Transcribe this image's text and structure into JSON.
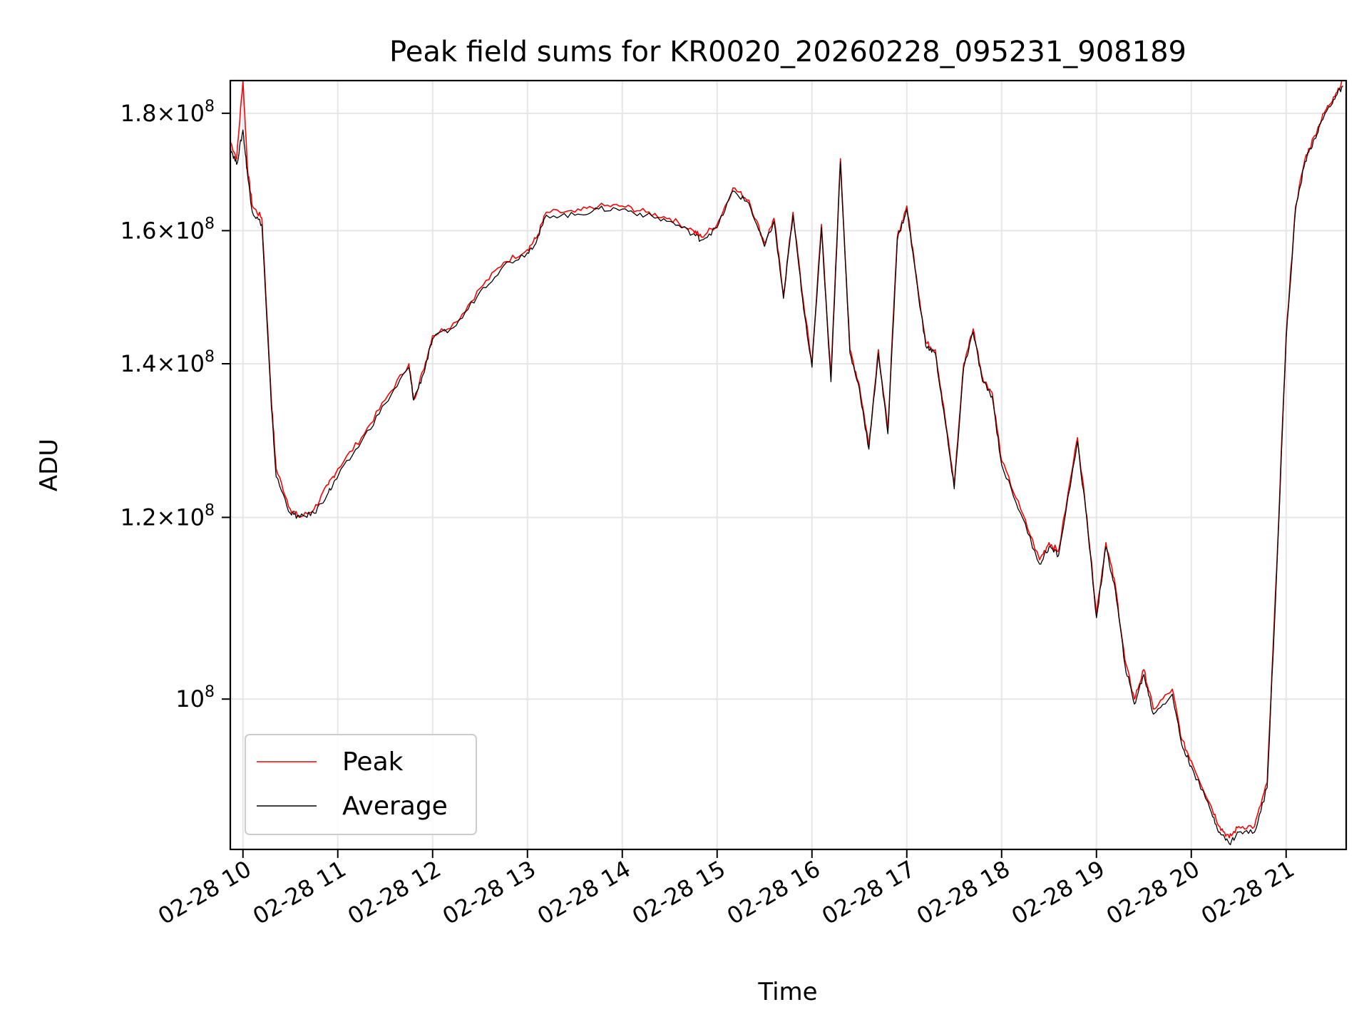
{
  "chart_data": {
    "type": "line",
    "title": "Peak field sums for KR0020_20260228_095231_908189",
    "xlabel": "Time",
    "ylabel": "ADU",
    "yscale": "log",
    "grid": true,
    "legend_position": "lower-left",
    "x_ticks": [
      "02-28 10",
      "02-28 11",
      "02-28 12",
      "02-28 13",
      "02-28 14",
      "02-28 15",
      "02-28 16",
      "02-28 17",
      "02-28 18",
      "02-28 19",
      "02-28 20",
      "02-28 21"
    ],
    "y_ticks": [
      {
        "value": 100000000,
        "mantissa": "",
        "exponent": "8"
      },
      {
        "value": 120000000,
        "mantissa": "1.2",
        "exponent": "8"
      },
      {
        "value": 140000000,
        "mantissa": "1.4",
        "exponent": "8"
      },
      {
        "value": 160000000,
        "mantissa": "1.6",
        "exponent": "8"
      },
      {
        "value": 180000000,
        "mantissa": "1.8",
        "exponent": "8"
      }
    ],
    "xlim": [
      "02-28 09:52",
      "02-28 21:38"
    ],
    "ylim": [
      86000000,
      186000000
    ],
    "series": [
      {
        "name": "Peak",
        "color": "#ff0000",
        "x": [
          "09:52",
          "09:56",
          "10:00",
          "10:03",
          "10:06",
          "10:12",
          "10:18",
          "10:21",
          "10:30",
          "10:36",
          "10:45",
          "10:54",
          "11:00",
          "11:15",
          "11:30",
          "11:45",
          "11:48",
          "11:54",
          "12:00",
          "12:15",
          "12:30",
          "12:45",
          "13:00",
          "13:06",
          "13:12",
          "13:30",
          "13:45",
          "14:00",
          "14:15",
          "14:30",
          "14:45",
          "14:50",
          "15:00",
          "15:10",
          "15:20",
          "15:30",
          "15:36",
          "15:42",
          "15:48",
          "15:54",
          "16:00",
          "16:06",
          "16:12",
          "16:18",
          "16:24",
          "16:30",
          "16:36",
          "16:42",
          "16:48",
          "16:54",
          "17:00",
          "17:06",
          "17:12",
          "17:18",
          "17:24",
          "17:30",
          "17:36",
          "17:42",
          "17:48",
          "17:54",
          "18:00",
          "18:12",
          "18:24",
          "18:30",
          "18:36",
          "18:48",
          "18:54",
          "19:00",
          "19:06",
          "19:12",
          "19:18",
          "19:24",
          "19:30",
          "19:36",
          "19:48",
          "19:54",
          "20:00",
          "20:12",
          "20:18",
          "20:24",
          "20:30",
          "20:40",
          "20:48",
          "20:54",
          "21:00",
          "21:06",
          "21:12",
          "21:18",
          "21:24",
          "21:30",
          "21:36"
        ],
        "values": [
          175000000,
          172000000,
          186000000,
          170000000,
          164000000,
          162000000,
          135000000,
          126000000,
          121000000,
          120000000,
          121000000,
          124000000,
          126000000,
          130000000,
          135000000,
          140000000,
          135000000,
          139000000,
          144000000,
          146000000,
          151000000,
          155000000,
          157000000,
          159000000,
          163000000,
          163000000,
          164000000,
          164000000,
          163000000,
          162000000,
          160000000,
          159000000,
          161000000,
          167000000,
          165000000,
          158000000,
          162000000,
          150000000,
          163000000,
          150000000,
          140000000,
          161000000,
          138000000,
          172000000,
          142000000,
          137000000,
          129000000,
          142000000,
          131000000,
          159000000,
          164000000,
          153000000,
          143000000,
          142000000,
          133000000,
          124000000,
          140000000,
          145000000,
          138000000,
          136000000,
          127000000,
          121000000,
          115000000,
          117000000,
          116000000,
          130000000,
          120000000,
          109000000,
          117000000,
          112000000,
          104000000,
          100000000,
          103000000,
          99000000,
          101000000,
          96000000,
          94000000,
          90000000,
          88000000,
          87000000,
          88000000,
          88000000,
          92000000,
          114000000,
          144000000,
          164000000,
          172000000,
          176000000,
          180000000,
          183000000,
          186000000
        ]
      },
      {
        "name": "Average",
        "color": "#000000",
        "x": [
          "09:52",
          "09:56",
          "10:00",
          "10:03",
          "10:06",
          "10:12",
          "10:18",
          "10:21",
          "10:30",
          "10:36",
          "10:45",
          "10:54",
          "11:00",
          "11:15",
          "11:30",
          "11:45",
          "11:48",
          "11:54",
          "12:00",
          "12:15",
          "12:30",
          "12:45",
          "13:00",
          "13:06",
          "13:12",
          "13:30",
          "13:45",
          "14:00",
          "14:15",
          "14:30",
          "14:45",
          "14:50",
          "15:00",
          "15:10",
          "15:20",
          "15:30",
          "15:36",
          "15:42",
          "15:48",
          "15:54",
          "16:00",
          "16:06",
          "16:12",
          "16:18",
          "16:24",
          "16:30",
          "16:36",
          "16:42",
          "16:48",
          "16:54",
          "17:00",
          "17:06",
          "17:12",
          "17:18",
          "17:24",
          "17:30",
          "17:36",
          "17:42",
          "17:48",
          "17:54",
          "18:00",
          "18:12",
          "18:24",
          "18:30",
          "18:36",
          "18:48",
          "18:54",
          "19:00",
          "19:06",
          "19:12",
          "19:18",
          "19:24",
          "19:30",
          "19:36",
          "19:48",
          "19:54",
          "20:00",
          "20:12",
          "20:18",
          "20:24",
          "20:30",
          "20:40",
          "20:48",
          "20:54",
          "21:00",
          "21:06",
          "21:12",
          "21:18",
          "21:24",
          "21:30",
          "21:36"
        ],
        "values": [
          174000000,
          171000000,
          177000000,
          169000000,
          163000000,
          161000000,
          134000000,
          125000000,
          120500000,
          120000000,
          120500000,
          123000000,
          125000000,
          129500000,
          134500000,
          139500000,
          135000000,
          138500000,
          143500000,
          145500000,
          150500000,
          154500000,
          156500000,
          158500000,
          162500000,
          162500000,
          163500000,
          163500000,
          162500000,
          161500000,
          159500000,
          158500000,
          160500000,
          166500000,
          164500000,
          157500000,
          161500000,
          149500000,
          162500000,
          149500000,
          139500000,
          160500000,
          137500000,
          171500000,
          141500000,
          136500000,
          128500000,
          141500000,
          130500000,
          158500000,
          163500000,
          152500000,
          142500000,
          141500000,
          132500000,
          123500000,
          139500000,
          144500000,
          137500000,
          135500000,
          126500000,
          120500000,
          114500000,
          116500000,
          115500000,
          129500000,
          119500000,
          108500000,
          116500000,
          111500000,
          103500000,
          99500000,
          102500000,
          98500000,
          100500000,
          95500000,
          93500000,
          89500000,
          87500000,
          86500000,
          87500000,
          87500000,
          91500000,
          113500000,
          143500000,
          163500000,
          171500000,
          175500000,
          179500000,
          182500000,
          185000000
        ]
      }
    ]
  }
}
